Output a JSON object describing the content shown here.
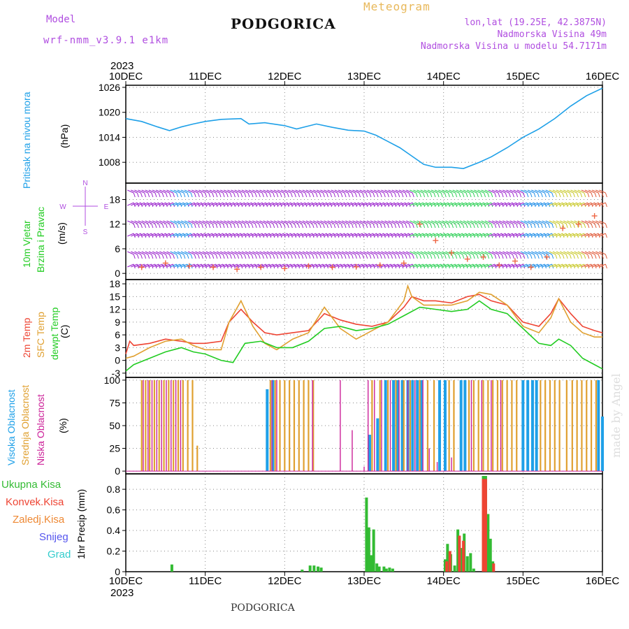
{
  "header": {
    "model_label": "Model",
    "model_version": "wrf-nmm_v3.9.1  e1km",
    "station": "PODGORICA",
    "meteogram": "Meteogram",
    "coords": "lon,lat (19.25E, 42.3875N)",
    "elevation": "Nadmorska Visina 49m",
    "model_elevation": "Nadmorska Visina u modelu 54.7171m"
  },
  "footer": {
    "station": "PODGORICA"
  },
  "watermark": "made by Angel",
  "colors": {
    "pressure": "#1ea0e8",
    "t2m": "#ee4433",
    "sfc": "#e0a030",
    "dewpt": "#22cc22",
    "high_cloud": "#1ea0e8",
    "mid_cloud": "#e0a030",
    "low_cloud": "#cc2299",
    "total_precip": "#33bb33",
    "conv_precip": "#ee4433",
    "frz_precip": "#ee8833",
    "snow": "#5555ee",
    "graupel": "#33cccc",
    "wind_label": "#22cc22",
    "wind_label2": "#e0a030",
    "barb": "#9922cc"
  },
  "chart_data": [
    {
      "type": "line",
      "id": "pressure",
      "year": "2023",
      "x_ticks": [
        "10DEC",
        "11DEC",
        "12DEC",
        "13DEC",
        "14DEC",
        "15DEC",
        "16DEC"
      ],
      "xlim_days": [
        0,
        6
      ],
      "ylabel_left": "Pritisak na nivou mora",
      "unit": "(hPa)",
      "y_ticks": [
        1008,
        1014,
        1020,
        1026
      ],
      "ylim": [
        1003,
        1026.5
      ],
      "series": [
        {
          "x": [
            0,
            0.2,
            0.4,
            0.55,
            0.7,
            0.85,
            1.0,
            1.2,
            1.45,
            1.55,
            1.75,
            2.0,
            2.15,
            2.4,
            2.6,
            2.8,
            3.0,
            3.15,
            3.3,
            3.45,
            3.6,
            3.75,
            3.9,
            4.0,
            4.1,
            4.25,
            4.45,
            4.6,
            4.8,
            5.0,
            5.2,
            5.4,
            5.6,
            5.8,
            6.0
          ],
          "y": [
            1018.5,
            1017.8,
            1016.5,
            1015.6,
            1016.5,
            1017.2,
            1017.8,
            1018.3,
            1018.5,
            1017.2,
            1017.5,
            1016.8,
            1016.0,
            1017.2,
            1016.4,
            1015.7,
            1015.5,
            1014.5,
            1013.0,
            1011.5,
            1009.5,
            1007.5,
            1006.8,
            1006.8,
            1006.8,
            1006.5,
            1008.0,
            1009.3,
            1011.5,
            1014.0,
            1016.0,
            1018.5,
            1021.5,
            1024.0,
            1025.8
          ]
        }
      ]
    },
    {
      "type": "scatter",
      "id": "wind",
      "ylabel_left": "10m Vjetar",
      "ylabel_left2": "Brzina i Pravac",
      "unit": "(m/s)",
      "y_ticks": [
        0,
        6,
        12,
        18
      ],
      "ylim": [
        -1.5,
        22
      ],
      "compass": [
        "N",
        "E",
        "S",
        "W"
      ],
      "series": [
        {
          "name": "speed",
          "x": [
            0.2,
            0.5,
            0.8,
            1.1,
            1.4,
            1.7,
            2.0,
            2.3,
            2.6,
            2.9,
            3.2,
            3.5,
            3.7,
            3.9,
            4.1,
            4.3,
            4.5,
            4.7,
            4.9,
            5.1,
            5.3,
            5.5,
            5.7,
            5.9
          ],
          "y": [
            1.5,
            2.5,
            1.8,
            1.5,
            1.0,
            1.5,
            1.2,
            1.8,
            1.5,
            1.6,
            2.0,
            2.5,
            12.0,
            8.0,
            5.0,
            3.5,
            4.0,
            2.0,
            3.0,
            1.5,
            4.0,
            11.0,
            12.0,
            14.0
          ]
        }
      ]
    },
    {
      "type": "line",
      "id": "temperature",
      "ylabel_left": "2m Temp",
      "ylabel_left2": "SFC Temp",
      "ylabel_left3": "dewpt Temp",
      "unit": "(C)",
      "y_ticks": [
        -3,
        0,
        3,
        6,
        9,
        12,
        15,
        18
      ],
      "ylim": [
        -4,
        19
      ],
      "series": [
        {
          "name": "2m Temp",
          "x": [
            0,
            0.05,
            0.1,
            0.3,
            0.5,
            0.7,
            0.85,
            1.0,
            1.2,
            1.3,
            1.45,
            1.6,
            1.75,
            1.9,
            2.1,
            2.3,
            2.5,
            2.7,
            2.9,
            3.1,
            3.3,
            3.5,
            3.6,
            3.75,
            3.9,
            4.1,
            4.3,
            4.45,
            4.6,
            4.8,
            5.0,
            5.2,
            5.35,
            5.45,
            5.6,
            5.75,
            5.9,
            6.0
          ],
          "y": [
            1.5,
            4.5,
            3.5,
            4.0,
            5.0,
            4.5,
            4.0,
            4.0,
            4.5,
            9.0,
            12.0,
            9.0,
            6.5,
            6.0,
            6.5,
            7.0,
            11.0,
            9.5,
            8.5,
            8.0,
            9.0,
            12.5,
            15.0,
            14.0,
            14.0,
            13.5,
            15.0,
            15.5,
            14.0,
            13.0,
            9.0,
            8.0,
            11.0,
            14.5,
            11.0,
            8.0,
            7.0,
            6.5
          ]
        },
        {
          "name": "SFC Temp",
          "x": [
            0,
            0.1,
            0.3,
            0.5,
            0.7,
            0.85,
            1.0,
            1.2,
            1.3,
            1.45,
            1.6,
            1.75,
            1.9,
            2.1,
            2.3,
            2.5,
            2.7,
            2.9,
            3.1,
            3.3,
            3.5,
            3.55,
            3.6,
            3.75,
            3.9,
            4.1,
            4.3,
            4.45,
            4.6,
            4.8,
            5.0,
            5.2,
            5.35,
            5.45,
            5.6,
            5.75,
            5.9,
            6.0
          ],
          "y": [
            0.5,
            1.0,
            3.0,
            4.5,
            5.0,
            3.5,
            2.5,
            2.5,
            9.0,
            14.0,
            8.0,
            4.0,
            2.5,
            5.0,
            6.5,
            12.5,
            7.5,
            5.0,
            7.0,
            9.0,
            14.0,
            17.5,
            15.0,
            13.0,
            13.0,
            13.0,
            14.0,
            16.0,
            15.5,
            13.0,
            8.0,
            6.5,
            10.0,
            14.5,
            9.0,
            6.5,
            5.5,
            5.5
          ]
        },
        {
          "name": "dewpt Temp",
          "x": [
            0,
            0.1,
            0.3,
            0.5,
            0.7,
            0.85,
            1.0,
            1.2,
            1.35,
            1.5,
            1.7,
            1.9,
            2.1,
            2.3,
            2.5,
            2.7,
            2.9,
            3.1,
            3.3,
            3.5,
            3.7,
            3.9,
            4.1,
            4.3,
            4.45,
            4.6,
            4.8,
            5.0,
            5.2,
            5.35,
            5.45,
            5.6,
            5.75,
            5.9,
            6.0
          ],
          "y": [
            -2.5,
            -1.0,
            0.5,
            2.0,
            3.0,
            2.0,
            1.5,
            0.0,
            -0.5,
            4.0,
            4.5,
            3.0,
            3.0,
            4.5,
            7.5,
            8.0,
            7.0,
            7.5,
            8.5,
            10.5,
            12.5,
            12.0,
            11.5,
            12.0,
            14.0,
            12.0,
            11.0,
            7.5,
            4.0,
            3.5,
            5.0,
            3.5,
            0.5,
            -1.0,
            -2.0
          ]
        }
      ]
    },
    {
      "type": "bar",
      "id": "cloud",
      "ylabel_left": "Visoka Oblacnost",
      "ylabel_left2": "Srednja Oblacnost",
      "ylabel_left3": "Niska Oblacnost",
      "unit": "(%)",
      "y_ticks": [
        0,
        25,
        50,
        75,
        100
      ],
      "ylim": [
        -3,
        103
      ],
      "series": [
        {
          "name": "Visoka Oblacnost",
          "x": [
            1.78,
            1.85,
            3.07,
            3.17,
            3.27,
            3.37,
            3.42,
            3.48,
            3.55,
            3.61,
            3.67,
            3.72,
            3.95,
            4.02,
            4.22,
            4.27,
            5.0,
            5.06,
            5.12,
            5.17,
            5.95,
            6.0
          ],
          "values": [
            90,
            100,
            40,
            58,
            100,
            100,
            100,
            100,
            100,
            100,
            100,
            100,
            100,
            100,
            100,
            100,
            100,
            100,
            100,
            100,
            100,
            60
          ]
        },
        {
          "name": "Srednja Oblacnost",
          "x": [
            0.2,
            0.25,
            0.3,
            0.36,
            0.42,
            0.48,
            0.54,
            0.6,
            0.66,
            0.72,
            0.78,
            0.84,
            0.9,
            1.82,
            1.88,
            1.94,
            2.0,
            2.06,
            2.12,
            2.18,
            2.24,
            2.3,
            2.36,
            3.1,
            3.2,
            3.3,
            3.4,
            3.5,
            3.58,
            3.7,
            3.8,
            3.88,
            4.07,
            4.13,
            4.32,
            4.38,
            4.44,
            4.5,
            4.56,
            4.62,
            4.68,
            4.74,
            4.8,
            4.86,
            4.92,
            5.22,
            5.28,
            5.34,
            5.4,
            5.46,
            5.55,
            5.62,
            5.68,
            5.74,
            5.8,
            5.86,
            5.92
          ],
          "values": [
            100,
            100,
            100,
            100,
            100,
            100,
            100,
            100,
            100,
            100,
            100,
            100,
            28,
            100,
            100,
            100,
            100,
            100,
            100,
            100,
            100,
            100,
            100,
            100,
            100,
            100,
            100,
            100,
            100,
            100,
            100,
            100,
            100,
            100,
            100,
            100,
            100,
            100,
            100,
            100,
            100,
            100,
            100,
            100,
            100,
            100,
            100,
            100,
            100,
            100,
            100,
            100,
            100,
            100,
            100,
            100,
            100
          ]
        },
        {
          "name": "Niska Oblacnost",
          "x": [
            0.22,
            0.28,
            0.33,
            0.39,
            0.45,
            0.51,
            0.57,
            0.63,
            0.69,
            1.84,
            1.9,
            2.35,
            2.7,
            2.85,
            3.0,
            3.05,
            3.13,
            3.22,
            3.33,
            3.44,
            3.55,
            3.64,
            3.74,
            3.82,
            3.92,
            4.1,
            4.35,
            4.48,
            4.6,
            4.72
          ],
          "values": [
            100,
            100,
            100,
            100,
            100,
            100,
            100,
            100,
            100,
            100,
            100,
            100,
            100,
            45,
            5,
            100,
            100,
            100,
            100,
            100,
            100,
            100,
            100,
            25,
            10,
            15,
            100,
            100,
            100,
            100
          ]
        }
      ]
    },
    {
      "type": "bar",
      "id": "precip",
      "legend": [
        "Ukupna Kisa",
        "Konvek.Kisa",
        "Zaledj.Kisa",
        "Snijeg",
        "Grad"
      ],
      "unit_label": "1hr Precip (mm)",
      "y_ticks": [
        0,
        0.2,
        0.4,
        0.6,
        0.8
      ],
      "ylim": [
        0,
        0.95
      ],
      "x_ticks_bottom": [
        "10DEC",
        "11DEC",
        "12DEC",
        "13DEC",
        "14DEC",
        "15DEC",
        "16DEC"
      ],
      "year_bottom": "2023",
      "series": [
        {
          "name": "Ukupna Kisa",
          "x": [
            0.58,
            2.22,
            2.32,
            2.37,
            2.42,
            2.46,
            3.03,
            3.06,
            3.09,
            3.12,
            3.16,
            3.19,
            3.25,
            3.28,
            3.32,
            3.36,
            4.02,
            4.05,
            4.09,
            4.14,
            4.18,
            4.22,
            4.26,
            4.3,
            4.34,
            4.38,
            4.5,
            4.53,
            4.56,
            4.59,
            4.62
          ],
          "values": [
            0.07,
            0.02,
            0.06,
            0.06,
            0.05,
            0.04,
            0.72,
            0.43,
            0.16,
            0.41,
            0.08,
            0.05,
            0.05,
            0.03,
            0.04,
            0.03,
            0.12,
            0.27,
            0.17,
            0.06,
            0.41,
            0.23,
            0.37,
            0.15,
            0.18,
            0.03,
            0.93,
            0.93,
            0.56,
            0.32,
            0.1
          ]
        },
        {
          "name": "Konvek.Kisa",
          "x": [
            4.04,
            4.08,
            4.2,
            4.25,
            4.5,
            4.53,
            4.63
          ],
          "values": [
            0.1,
            0.2,
            0.35,
            0.3,
            0.9,
            0.9,
            0.08
          ]
        }
      ]
    }
  ]
}
